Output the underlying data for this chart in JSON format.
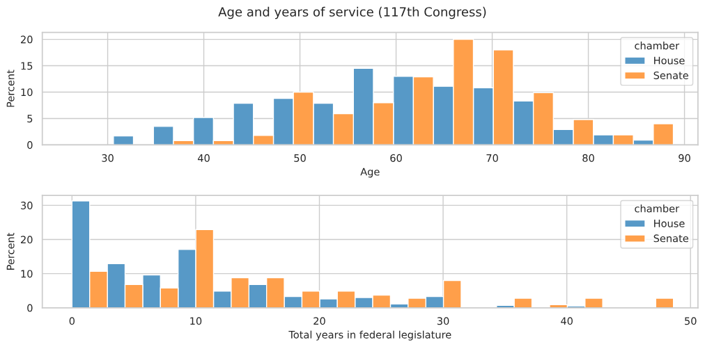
{
  "chart_data": [
    {
      "type": "histogram",
      "title": "Age and years of service (117th Congress)",
      "xlabel": "Age",
      "ylabel": "Percent",
      "legend_title": "chamber",
      "legend": "top right",
      "grid": true,
      "bins": [
        30.6,
        34.76,
        38.92,
        43.08,
        47.24,
        51.4,
        55.56,
        59.72,
        63.88,
        68.04,
        72.2,
        76.36,
        80.52,
        84.68,
        88.84
      ],
      "series": [
        {
          "name": "House",
          "color": "#5799c7",
          "values": [
            1.7,
            3.5,
            5.2,
            7.9,
            8.8,
            7.9,
            14.5,
            13.0,
            11.1,
            10.8,
            8.3,
            2.9,
            1.9,
            0.9
          ]
        },
        {
          "name": "Senate",
          "color": "#ff9f4a",
          "values": [
            0,
            0.8,
            0.8,
            1.8,
            10.0,
            5.9,
            8.0,
            12.9,
            20.0,
            18.0,
            9.9,
            4.8,
            1.9,
            4.0
          ]
        }
      ],
      "xlim": [
        23.2,
        91.4
      ],
      "xticks": [
        30,
        40,
        50,
        60,
        70,
        80,
        90
      ],
      "ylim": [
        0,
        21.3
      ],
      "yticks": [
        0,
        5,
        10,
        15,
        20
      ]
    },
    {
      "type": "histogram",
      "xlabel": "Total years in federal legislature",
      "ylabel": "Percent",
      "legend_title": "chamber",
      "legend": "top right",
      "grid": true,
      "bins": [
        0,
        2.86,
        5.72,
        8.58,
        11.44,
        14.3,
        17.16,
        20.02,
        22.88,
        25.74,
        28.6,
        31.46,
        34.32,
        37.18,
        40.04,
        42.9,
        45.76,
        48.62
      ],
      "series": [
        {
          "name": "House",
          "color": "#5799c7",
          "values": [
            31.3,
            12.9,
            9.6,
            17.1,
            4.9,
            6.8,
            3.3,
            2.6,
            3.0,
            1.1,
            3.3,
            0.2,
            0.7,
            0,
            0.5,
            0,
            0
          ]
        },
        {
          "name": "Senate",
          "color": "#ff9f4a",
          "values": [
            10.7,
            6.8,
            5.8,
            22.9,
            8.8,
            8.8,
            4.9,
            4.9,
            3.7,
            2.8,
            8.0,
            0,
            2.8,
            0.9,
            2.8,
            0,
            2.8
          ]
        }
      ],
      "xlim": [
        -2.4,
        50.6
      ],
      "xticks": [
        0,
        10,
        20,
        30,
        40,
        50
      ],
      "ylim": [
        0,
        32.9
      ],
      "yticks": [
        0,
        10,
        20,
        30
      ]
    }
  ]
}
